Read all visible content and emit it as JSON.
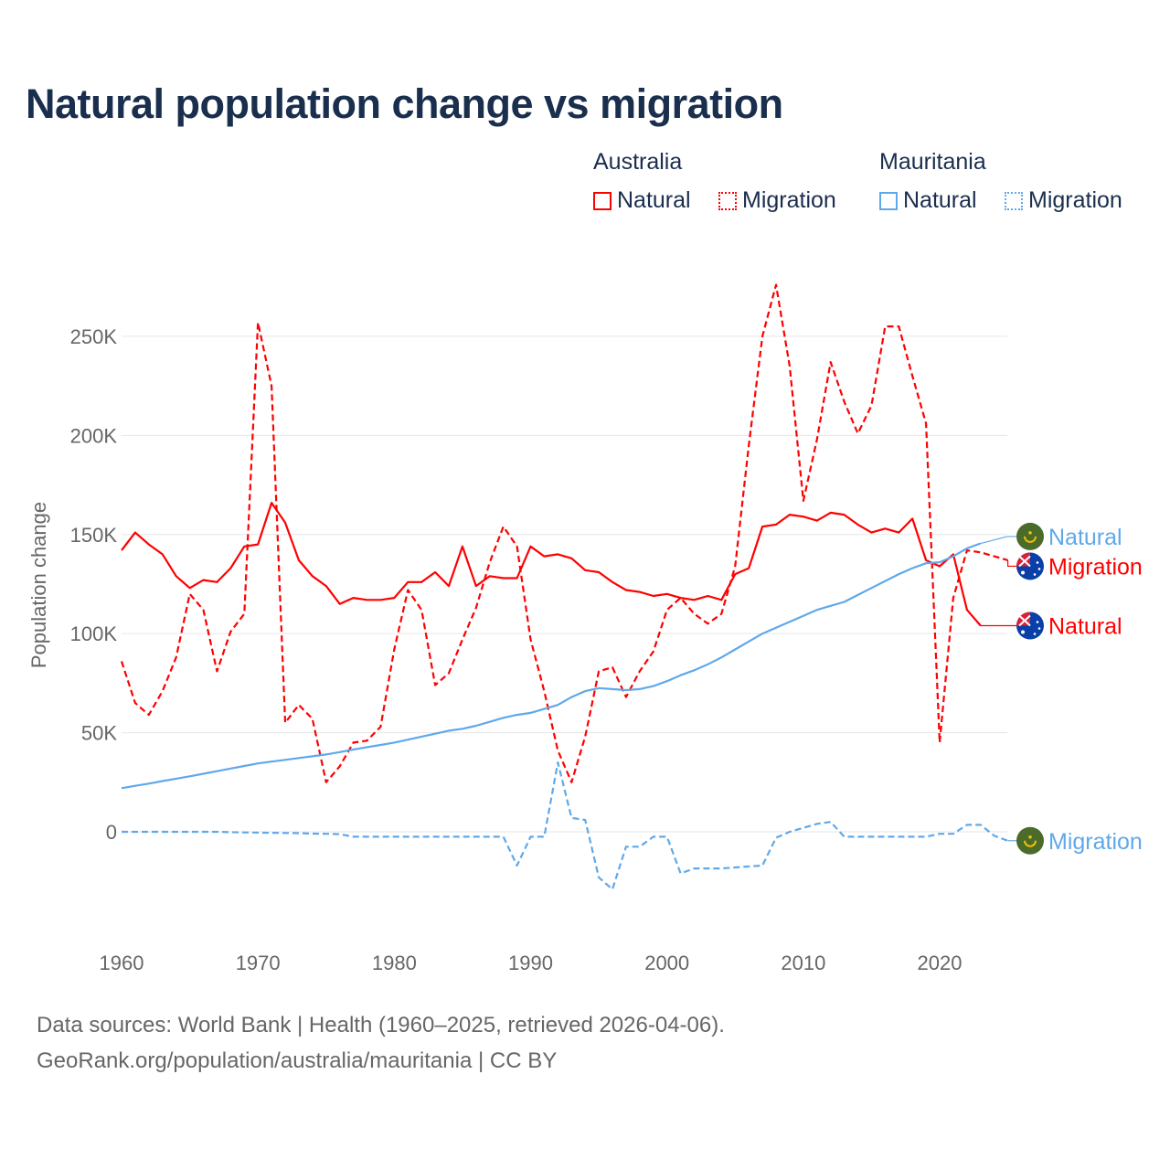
{
  "chart_data": {
    "type": "line",
    "title": "Natural population change vs migration",
    "ylabel": "Population change",
    "xlabel": "",
    "ylim": [
      -40000,
      285000
    ],
    "xlim": [
      1960,
      2025
    ],
    "yticks": [
      {
        "v": 0,
        "label": "0"
      },
      {
        "v": 50000,
        "label": "50K"
      },
      {
        "v": 100000,
        "label": "100K"
      },
      {
        "v": 150000,
        "label": "150K"
      },
      {
        "v": 200000,
        "label": "200K"
      },
      {
        "v": 250000,
        "label": "250K"
      }
    ],
    "xticks": [
      {
        "v": 1960,
        "label": "1960"
      },
      {
        "v": 1970,
        "label": "1970"
      },
      {
        "v": 1980,
        "label": "1980"
      },
      {
        "v": 1990,
        "label": "1990"
      },
      {
        "v": 2000,
        "label": "2000"
      },
      {
        "v": 2010,
        "label": "2010"
      },
      {
        "v": 2020,
        "label": "2020"
      }
    ],
    "grid": true,
    "legend_position": "top-right",
    "legend_groups": [
      {
        "country": "Australia",
        "items": [
          "Natural",
          "Migration"
        ]
      },
      {
        "country": "Mauritania",
        "items": [
          "Natural",
          "Migration"
        ]
      }
    ],
    "series": [
      {
        "name": "Australia Natural",
        "label": "Natural",
        "country": "Australia",
        "color": "#ff0000",
        "dash": false,
        "start": 1960,
        "values": [
          142000,
          151000,
          145000,
          140000,
          129000,
          123000,
          127000,
          126000,
          133000,
          144000,
          145000,
          166000,
          156000,
          137000,
          129000,
          124000,
          115000,
          118000,
          117000,
          117000,
          118000,
          126000,
          126000,
          131000,
          124000,
          144000,
          124000,
          129000,
          128000,
          128000,
          144000,
          139000,
          140000,
          138000,
          132000,
          131000,
          126000,
          122000,
          121000,
          119000,
          120000,
          118000,
          117000,
          119000,
          117000,
          130000,
          133000,
          154000,
          155000,
          160000,
          159000,
          157000,
          161000,
          160000,
          155000,
          151000,
          153000,
          151000,
          158000,
          137000,
          134000,
          140000,
          112000,
          104000
        ]
      },
      {
        "name": "Australia Migration",
        "label": "Migration",
        "country": "Australia",
        "color": "#ff0000",
        "dash": true,
        "start": 1960,
        "values": [
          86000,
          65000,
          59000,
          71000,
          88000,
          120000,
          112000,
          81000,
          101000,
          110000,
          257000,
          225000,
          55000,
          64000,
          57000,
          25000,
          33000,
          45000,
          46000,
          53000,
          92000,
          122000,
          112000,
          74000,
          80000,
          97000,
          113000,
          136000,
          154000,
          144000,
          97000,
          71000,
          41000,
          25000,
          48000,
          81000,
          83000,
          68000,
          81000,
          91000,
          112000,
          118000,
          110000,
          105000,
          110000,
          134000,
          195000,
          250000,
          276000,
          235000,
          167000,
          198000,
          237000,
          217000,
          201000,
          215000,
          255000,
          255000,
          230000,
          206000,
          45000,
          118000,
          142000,
          141000,
          139000,
          137000
        ]
      },
      {
        "name": "Mauritania Natural",
        "label": "Natural",
        "country": "Mauritania",
        "color": "#5fa8ea",
        "dash": false,
        "start": 1960,
        "values": [
          22000,
          23200,
          24300,
          25600,
          26800,
          28000,
          29300,
          30600,
          31900,
          33200,
          34500,
          35400,
          36300,
          37200,
          38100,
          39000,
          40200,
          41500,
          42700,
          43800,
          45000,
          46500,
          48000,
          49500,
          51000,
          52000,
          53500,
          55500,
          57500,
          59000,
          60000,
          62000,
          64000,
          68000,
          71000,
          72500,
          72000,
          71500,
          72000,
          73500,
          76000,
          79000,
          81500,
          84500,
          88000,
          92000,
          96000,
          100000,
          103000,
          106000,
          109000,
          112000,
          114000,
          116000,
          119500,
          123000,
          126500,
          130000,
          133000,
          135500,
          136000,
          139000,
          143000,
          145500
        ]
      },
      {
        "name": "Mauritania Migration",
        "label": "Migration",
        "country": "Mauritania",
        "color": "#5fa8ea",
        "dash": true,
        "start": 1960,
        "values": [
          0,
          0,
          0,
          0,
          0,
          0,
          0,
          0,
          -200,
          -300,
          -400,
          -500,
          -600,
          -700,
          -900,
          -1000,
          -1200,
          -2500,
          -2500,
          -2500,
          -2500,
          -2500,
          -2500,
          -2500,
          -2500,
          -2500,
          -2500,
          -2500,
          -2500,
          -17000,
          -2500,
          -2500,
          35000,
          7000,
          6000,
          -23000,
          -29000,
          -7500,
          -7500,
          -2500,
          -2500,
          -21000,
          -18500,
          -18500,
          -18500,
          -18000,
          -17500,
          -17000,
          -3000,
          0,
          2000,
          4000,
          5000,
          -2500,
          -2500,
          -2500,
          -2500,
          -2500,
          -2500,
          -2500,
          -1000,
          -1000,
          3500,
          3500,
          -2000,
          -4500
        ]
      }
    ],
    "end_labels": [
      {
        "series": 0,
        "text": "Natural",
        "flag": "australia",
        "value": 104000
      },
      {
        "series": 1,
        "text": "Migration",
        "flag": "australia",
        "value": 134000
      },
      {
        "series": 2,
        "text": "Natural",
        "flag": "mauritania",
        "value": 149000
      },
      {
        "series": 3,
        "text": "Migration",
        "flag": "mauritania",
        "value": -4500
      }
    ]
  },
  "legend": {
    "australia": "Australia",
    "mauritania": "Mauritania",
    "natural": "Natural",
    "migration": "Migration"
  },
  "footer": {
    "line1": "Data sources: World Bank | Health (1960–2025, retrieved 2026-04-06).",
    "line2": "GeoRank.org/population/australia/mauritania | CC BY"
  }
}
